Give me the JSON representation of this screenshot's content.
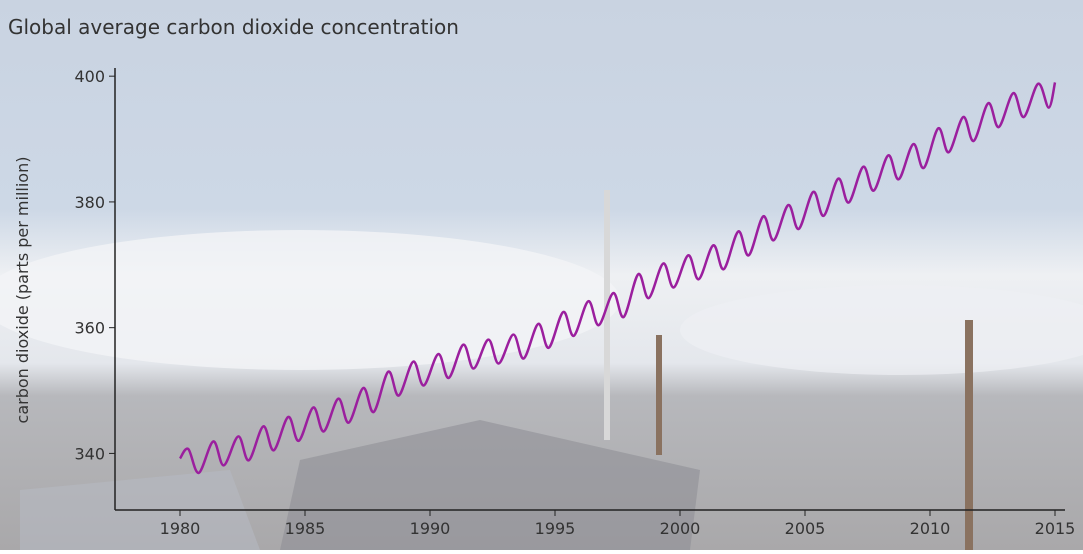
{
  "chart_data": {
    "type": "line",
    "title": "Global average carbon dioxide concentration",
    "y_label": "carbon dioxide (parts per million)",
    "xlim": [
      1977.4,
      2015.4
    ],
    "ylim": [
      331,
      401.3
    ],
    "xticks": [
      1980,
      1985,
      1990,
      1995,
      2000,
      2005,
      2010,
      2015
    ],
    "yticks": [
      340,
      360,
      380,
      400
    ],
    "series": [
      {
        "name": "CO2",
        "color": "#9b1f9e",
        "x": [
          1980.0,
          1980.33,
          1980.75,
          1981.33,
          1981.75,
          1982.33,
          1982.75,
          1983.33,
          1983.75,
          1984.33,
          1984.75,
          1985.33,
          1985.75,
          1986.33,
          1986.75,
          1987.33,
          1987.75,
          1988.33,
          1988.75,
          1989.33,
          1989.75,
          1990.33,
          1990.75,
          1991.33,
          1991.75,
          1992.33,
          1992.75,
          1993.33,
          1993.75,
          1994.33,
          1994.75,
          1995.33,
          1995.75,
          1996.33,
          1996.75,
          1997.33,
          1997.75,
          1998.33,
          1998.75,
          1999.33,
          1999.75,
          2000.33,
          2000.75,
          2001.33,
          2001.75,
          2002.33,
          2002.75,
          2003.33,
          2003.75,
          2004.33,
          2004.75,
          2005.33,
          2005.75,
          2006.33,
          2006.75,
          2007.33,
          2007.75,
          2008.33,
          2008.75,
          2009.33,
          2009.75,
          2010.33,
          2010.75,
          2011.33,
          2011.75,
          2012.33,
          2012.75,
          2013.33,
          2013.75,
          2014.33,
          2014.75,
          2015.0
        ],
        "values": [
          339.2,
          340.7,
          336.9,
          341.9,
          338.1,
          342.7,
          338.9,
          344.3,
          340.5,
          345.8,
          342.0,
          347.3,
          343.5,
          348.7,
          344.9,
          350.4,
          346.6,
          353.0,
          349.2,
          354.6,
          350.8,
          355.8,
          352.0,
          357.3,
          353.5,
          358.1,
          354.3,
          358.9,
          355.1,
          360.6,
          356.8,
          362.5,
          358.7,
          364.2,
          360.4,
          365.5,
          361.7,
          368.5,
          364.7,
          370.2,
          366.4,
          371.5,
          367.7,
          373.1,
          369.3,
          375.3,
          371.5,
          377.7,
          373.9,
          379.5,
          375.7,
          381.6,
          377.8,
          383.7,
          379.9,
          385.6,
          381.8,
          387.4,
          383.6,
          389.2,
          385.4,
          391.7,
          387.9,
          393.5,
          389.7,
          395.7,
          391.9,
          397.3,
          393.5,
          398.8,
          395.0,
          399.0
        ]
      }
    ]
  }
}
